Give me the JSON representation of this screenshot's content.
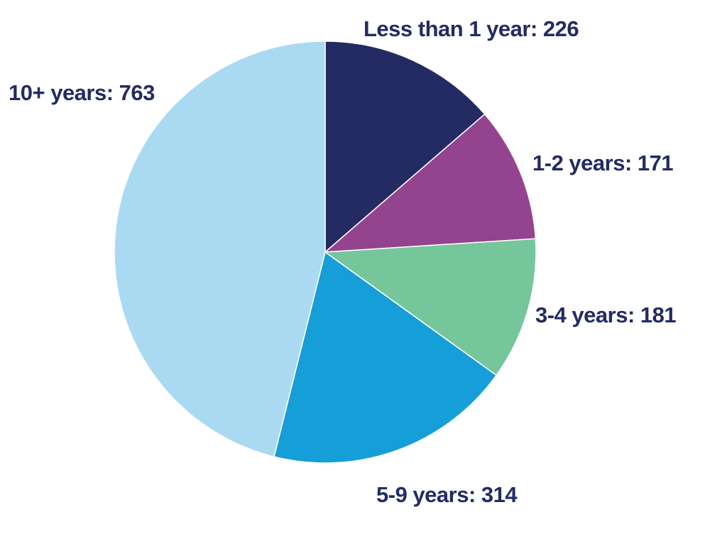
{
  "chart_data": {
    "type": "pie",
    "title": "",
    "start_angle": "12 o'clock",
    "direction": "clockwise",
    "slices": [
      {
        "label": "Less than 1 year",
        "value": 226,
        "display": "Less than 1 year: 226",
        "color": "#232b62"
      },
      {
        "label": "1-2 years",
        "value": 171,
        "display": "1-2 years: 171",
        "color": "#94448f"
      },
      {
        "label": "3-4 years",
        "value": 181,
        "display": "3-4 years: 181",
        "color": "#76c69b"
      },
      {
        "label": "5-9 years",
        "value": 314,
        "display": "5-9 years: 314",
        "color": "#169ed9"
      },
      {
        "label": "10+ years",
        "value": 763,
        "display": "10+ years: 763",
        "color": "#aadaf1"
      }
    ],
    "label_color": "#232b62"
  }
}
